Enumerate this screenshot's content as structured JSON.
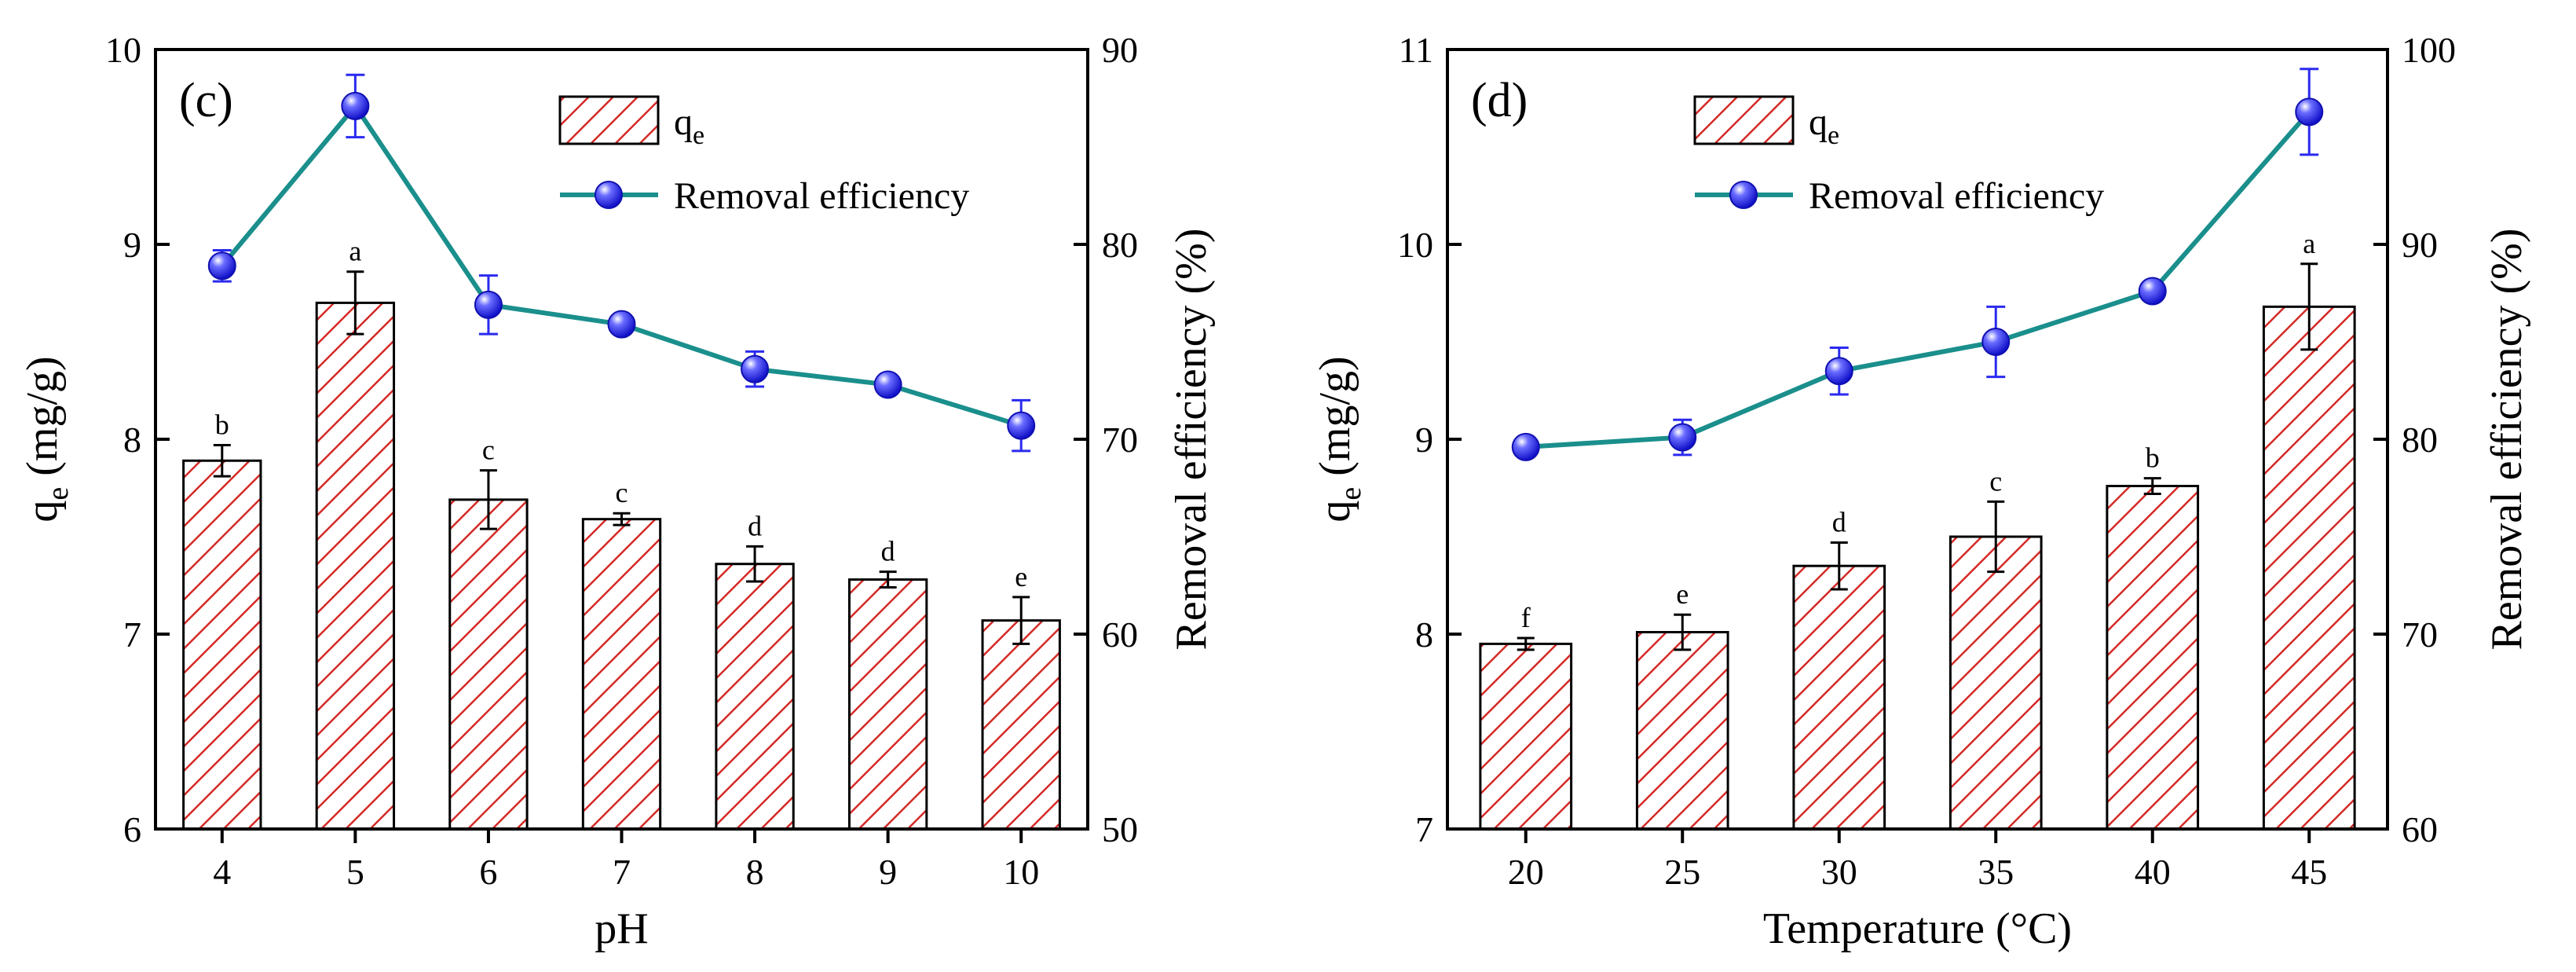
{
  "chart_data": [
    {
      "type": "bar",
      "panel_label": "(c)",
      "xlabel": "pH",
      "ylabel_main": "q",
      "ylabel_sub": "e",
      "ylabel_unit": " (mg/g)",
      "y2label": "Removal efficiency (%)",
      "categories": [
        "4",
        "5",
        "6",
        "7",
        "8",
        "9",
        "10"
      ],
      "ylim": [
        6,
        10
      ],
      "yticks": [
        "6",
        "7",
        "8",
        "9",
        "10"
      ],
      "y2lim": [
        50,
        90
      ],
      "y2ticks": [
        "50",
        "60",
        "70",
        "80",
        "90"
      ],
      "legend": {
        "bar_main": "q",
        "bar_sub": "e",
        "line": "Removal efficiency",
        "placement": "top-right"
      },
      "series": [
        {
          "kind": "bar",
          "axis": "left",
          "values": [
            7.89,
            8.7,
            7.69,
            7.59,
            7.36,
            7.28,
            7.07
          ],
          "errors": [
            0.08,
            0.16,
            0.15,
            0.03,
            0.09,
            0.04,
            0.12
          ],
          "significance": [
            "b",
            "a",
            "c",
            "c",
            "d",
            "d",
            "e"
          ]
        },
        {
          "kind": "line",
          "axis": "right",
          "values": [
            78.9,
            87.1,
            76.9,
            75.9,
            73.6,
            72.8,
            70.7
          ],
          "errors": [
            0.8,
            1.6,
            1.5,
            0.3,
            0.9,
            0.4,
            1.3
          ]
        }
      ],
      "colors": {
        "bar_hatch": "#d42a26",
        "line": "#1a8f8c",
        "marker": "#2a2af0",
        "error": "#2a2af0"
      }
    },
    {
      "type": "bar",
      "panel_label": "(d)",
      "xlabel": "Temperature (°C)",
      "ylabel_main": "q",
      "ylabel_sub": "e",
      "ylabel_unit": " (mg/g)",
      "y2label": "Removal efficiency (%)",
      "categories": [
        "20",
        "25",
        "30",
        "35",
        "40",
        "45"
      ],
      "ylim": [
        7,
        11
      ],
      "yticks": [
        "7",
        "8",
        "9",
        "10",
        "11"
      ],
      "y2lim": [
        60,
        100
      ],
      "y2ticks": [
        "60",
        "70",
        "80",
        "90",
        "100"
      ],
      "legend": {
        "bar_main": "q",
        "bar_sub": "e",
        "line": "Removal efficiency",
        "placement": "top-right"
      },
      "series": [
        {
          "kind": "bar",
          "axis": "left",
          "values": [
            7.95,
            8.01,
            8.35,
            8.5,
            8.76,
            9.68
          ],
          "errors": [
            0.03,
            0.09,
            0.12,
            0.18,
            0.04,
            0.22
          ],
          "significance": [
            "f",
            "e",
            "d",
            "c",
            "b",
            "a"
          ]
        },
        {
          "kind": "line",
          "axis": "right",
          "values": [
            79.6,
            80.1,
            83.5,
            85.0,
            87.6,
            96.8
          ],
          "errors": [
            0.3,
            0.9,
            1.2,
            1.8,
            0.4,
            2.2
          ]
        }
      ],
      "colors": {
        "bar_hatch": "#d42a26",
        "line": "#1a8f8c",
        "marker": "#2a2af0",
        "error": "#2a2af0"
      }
    }
  ]
}
